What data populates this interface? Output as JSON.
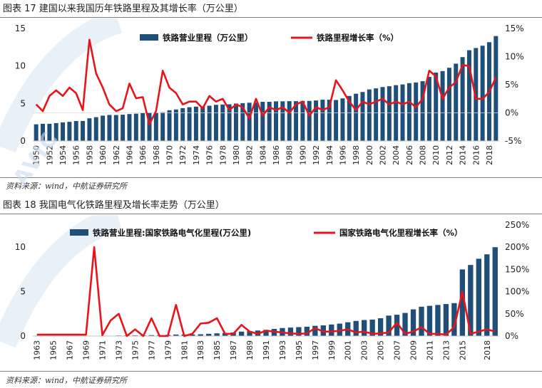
{
  "figure1": {
    "caption": "图表 17 建国以来我国历年铁路里程及其增长率（万公里）",
    "source": "资料来源：wind，中航证券研究所",
    "chart_data": {
      "type": "bar+line",
      "title": "建国以来我国历年铁路里程及其增长率（万公里）",
      "x": [
        1950,
        1951,
        1952,
        1953,
        1954,
        1955,
        1956,
        1957,
        1958,
        1959,
        1960,
        1961,
        1962,
        1963,
        1964,
        1965,
        1966,
        1967,
        1968,
        1969,
        1970,
        1971,
        1972,
        1973,
        1974,
        1975,
        1976,
        1977,
        1978,
        1979,
        1980,
        1981,
        1982,
        1983,
        1984,
        1985,
        1986,
        1987,
        1988,
        1989,
        1990,
        1991,
        1992,
        1993,
        1994,
        1995,
        1996,
        1997,
        1998,
        1999,
        2000,
        2001,
        2002,
        2003,
        2004,
        2005,
        2006,
        2007,
        2008,
        2009,
        2010,
        2011,
        2012,
        2013,
        2014,
        2015,
        2016,
        2017,
        2018,
        2019
      ],
      "x_tick_labels": [
        "1950",
        "1952",
        "1954",
        "1956",
        "1958",
        "1960",
        "1962",
        "1964",
        "1966",
        "1968",
        "1970",
        "1972",
        "1974",
        "1976",
        "1978",
        "1980",
        "1982",
        "1984",
        "1986",
        "1988",
        "1990",
        "1992",
        "1994",
        "1996",
        "1998",
        "2000",
        "2002",
        "2004",
        "2006",
        "2008",
        "2010",
        "2012",
        "2014",
        "2016",
        "2018"
      ],
      "series": [
        {
          "name": "铁路营业里程（万公里）",
          "type": "bar",
          "axis": "left",
          "color": "#1f4e79",
          "values": [
            2.22,
            2.29,
            2.29,
            2.38,
            2.48,
            2.55,
            2.66,
            2.67,
            3.02,
            3.17,
            3.38,
            3.47,
            3.46,
            3.5,
            3.59,
            3.64,
            3.72,
            3.78,
            3.79,
            3.83,
            4.1,
            4.2,
            4.38,
            4.5,
            4.58,
            4.62,
            4.7,
            4.82,
            4.86,
            4.89,
            4.99,
            5.04,
            5.1,
            5.14,
            5.22,
            5.22,
            5.28,
            5.29,
            5.31,
            5.31,
            5.34,
            5.34,
            5.4,
            5.5,
            5.5,
            5.46,
            5.68,
            6.0,
            6.3,
            6.53,
            6.87,
            7.01,
            7.19,
            7.3,
            7.44,
            7.54,
            7.71,
            7.8,
            7.97,
            8.55,
            9.12,
            9.32,
            9.76,
            10.31,
            11.18,
            12.1,
            12.4,
            12.7,
            13.17,
            13.99
          ]
        },
        {
          "name": "铁路里程增长率（%）",
          "type": "line",
          "axis": "right",
          "color": "#e8141b",
          "values": [
            1.5,
            0.3,
            3.0,
            4.0,
            3.0,
            4.5,
            3.5,
            0.5,
            13.0,
            7.0,
            4.5,
            1.5,
            0.3,
            0.8,
            5.2,
            2.6,
            2.8,
            -2.0,
            0.3,
            7.5,
            4.5,
            3.5,
            1.5,
            2.0,
            2.0,
            0.8,
            3.0,
            2.0,
            2.5,
            0.5,
            1.5,
            1.0,
            -1.0,
            2.5,
            -0.5,
            1.0,
            0.5,
            1.0,
            0.0,
            1.5,
            2.0,
            -0.5,
            1.0,
            0.5,
            1.0,
            5.8,
            4.0,
            2.0,
            0.5,
            2.0,
            1.5,
            2.0,
            2.5,
            1.5,
            2.0,
            1.5,
            2.0,
            1.0,
            2.5,
            7.5,
            6.5,
            2.5,
            4.5,
            5.5,
            8.5,
            8.3,
            2.5,
            2.5,
            3.7,
            6.3
          ]
        }
      ],
      "y_left": {
        "min": 0,
        "max": 15,
        "ticks": [
          "0",
          "5",
          "10",
          "15"
        ]
      },
      "y_right": {
        "min": -5,
        "max": 15,
        "ticks": [
          "-5%",
          "0%",
          "5%",
          "10%",
          "15%"
        ]
      },
      "legend": [
        "铁路营业里程（万公里）",
        "铁路里程增长率（%）"
      ],
      "legend_position": "top"
    }
  },
  "figure2": {
    "caption": "图表 18 我国电气化铁路里程及增长率走势（万公里）",
    "source": "资料来源：wind，中航证券研究所",
    "chart_data": {
      "type": "bar+line",
      "title": "我国电气化铁路里程及增长率走势（万公里）",
      "x": [
        1963,
        1964,
        1965,
        1966,
        1967,
        1968,
        1969,
        1970,
        1971,
        1972,
        1973,
        1974,
        1975,
        1976,
        1977,
        1978,
        1979,
        1980,
        1981,
        1982,
        1983,
        1984,
        1985,
        1986,
        1987,
        1988,
        1989,
        1990,
        1991,
        1992,
        1993,
        1994,
        1995,
        1996,
        1997,
        1998,
        1999,
        2000,
        2001,
        2002,
        2003,
        2004,
        2005,
        2006,
        2007,
        2008,
        2009,
        2010,
        2011,
        2012,
        2013,
        2014,
        2015,
        2016,
        2017,
        2018,
        2019
      ],
      "x_tick_labels": [
        "1963",
        "1965",
        "1967",
        "1969",
        "1971",
        "1973",
        "1975",
        "1977",
        "1979",
        "1981",
        "1983",
        "1985",
        "1987",
        "1989",
        "1991",
        "1993",
        "1995",
        "1997",
        "1999",
        "2001",
        "2003",
        "2005",
        "2007",
        "2009",
        "2011",
        "2013",
        "2015",
        "2018"
      ],
      "series": [
        {
          "name": "铁路营业里程:国家铁路电气化里程(万公里)",
          "type": "bar",
          "axis": "left",
          "color": "#1f4e79",
          "values": [
            0.01,
            0.01,
            0.01,
            0.01,
            0.01,
            0.01,
            0.01,
            0.03,
            0.03,
            0.04,
            0.06,
            0.07,
            0.07,
            0.08,
            0.1,
            0.1,
            0.13,
            0.17,
            0.17,
            0.18,
            0.2,
            0.25,
            0.3,
            0.35,
            0.4,
            0.5,
            0.55,
            0.62,
            0.7,
            0.8,
            0.9,
            0.95,
            1.0,
            1.05,
            1.15,
            1.2,
            1.3,
            1.4,
            1.55,
            1.7,
            1.8,
            1.85,
            2.0,
            2.3,
            2.4,
            2.6,
            3.0,
            3.3,
            3.4,
            3.5,
            3.6,
            3.7,
            7.5,
            8.0,
            8.7,
            9.2,
            10.0
          ]
        },
        {
          "name": "国家铁路电气化里程增长率（%）",
          "type": "line",
          "axis": "right",
          "color": "#e8141b",
          "values": [
            3,
            3,
            3,
            3,
            3,
            3,
            3,
            200,
            2,
            35,
            50,
            0,
            15,
            0,
            40,
            0,
            0,
            70,
            0,
            5,
            28,
            30,
            40,
            5,
            5,
            25,
            10,
            5,
            12,
            10,
            8,
            6,
            5,
            6,
            18,
            10,
            10,
            12,
            15,
            8,
            10,
            5,
            6,
            8,
            30,
            5,
            10,
            20,
            5,
            5,
            3,
            20,
            100,
            5,
            10,
            15,
            10
          ]
        }
      ],
      "y_left": {
        "min": 0,
        "max": 12.5,
        "ticks": [
          "0",
          "5",
          "10"
        ]
      },
      "y_right": {
        "min": 0,
        "max": 250,
        "ticks": [
          "0%",
          "50%",
          "100%",
          "150%",
          "200%",
          "250%"
        ]
      },
      "legend": [
        "铁路营业里程:国家铁路电气化里程(万公里)",
        "国家铁路电气化里程增长率（%）"
      ],
      "legend_position": "top"
    }
  },
  "watermark": "AVIC"
}
